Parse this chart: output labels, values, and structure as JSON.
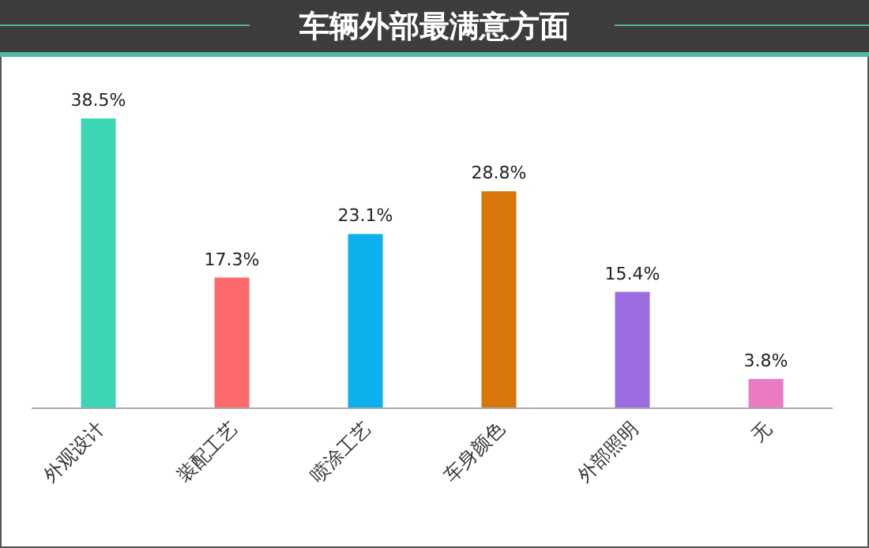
{
  "chart_data": {
    "type": "bar",
    "title": "车辆外部最满意方面",
    "categories": [
      "外观设计",
      "装配工艺",
      "喷涂工艺",
      "车身颜色",
      "外部照明",
      "无"
    ],
    "values": [
      38.5,
      17.3,
      23.1,
      28.8,
      15.4,
      3.8
    ],
    "colors": [
      "#3dd6b5",
      "#fe6a6b",
      "#0cb0ec",
      "#d9760b",
      "#9b6de0",
      "#ea7bc3"
    ],
    "value_labels": [
      "38.5%",
      "17.3%",
      "23.1%",
      "28.8%",
      "15.4%",
      "3.8%"
    ]
  }
}
